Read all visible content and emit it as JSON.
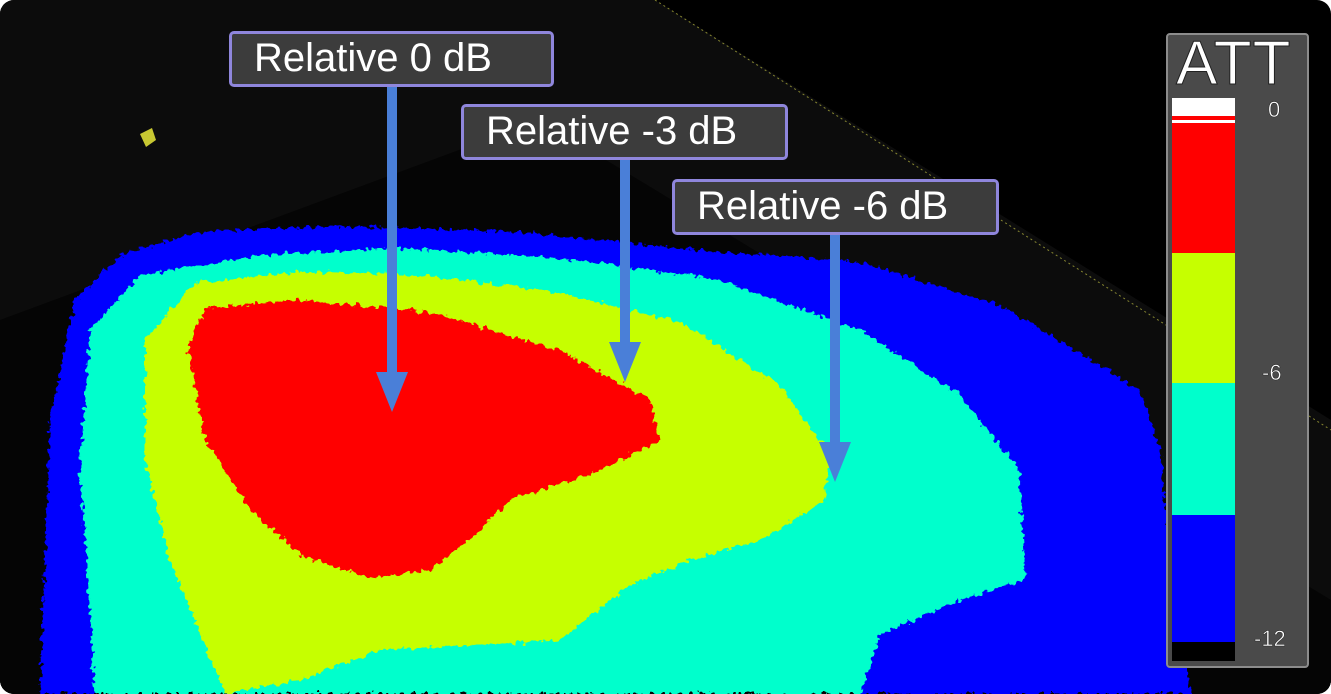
{
  "callouts": [
    {
      "label": "Relative 0 dB"
    },
    {
      "label": "Relative -3 dB"
    },
    {
      "label": "Relative -6 dB"
    }
  ],
  "legend": {
    "title": "ATT",
    "ticks": [
      "0",
      "-6",
      "-12"
    ],
    "colors": {
      "top": "#ffffff",
      "band_0_to_-3": "#ff0000",
      "band_-3_to_-6": "#c6ff00",
      "band_-6_to_-9": "#00ffcc",
      "band_-9_to_-12": "#0000ff",
      "below_-12": "#000000"
    }
  },
  "colors": {
    "background": "#000000",
    "arrow": "#4a7fd8",
    "callout_border": "#8f86dc",
    "callout_fill": "#3c3c3c"
  }
}
